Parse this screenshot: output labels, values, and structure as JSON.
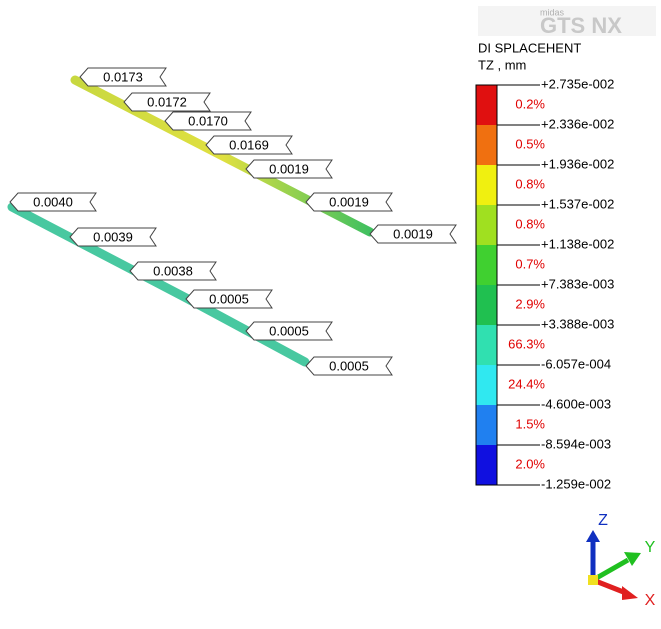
{
  "logo": {
    "brand": "midas",
    "product": "GTS NX"
  },
  "legend": {
    "title": "DI SPLACEHENT",
    "subtitle": "TZ , mm",
    "levels": [
      "+2.735e-002",
      "+2.336e-002",
      "+1.936e-002",
      "+1.537e-002",
      "+1.138e-002",
      "+7.383e-003",
      "+3.388e-003",
      "-6.057e-004",
      "-4.600e-003",
      "-8.594e-003",
      "-1.259e-002"
    ],
    "percentages": [
      "0.2%",
      "0.5%",
      "0.8%",
      "0.8%",
      "0.7%",
      "2.9%",
      "66.3%",
      "24.4%",
      "1.5%",
      "2.0%"
    ]
  },
  "callouts": [
    "0.0173",
    "0.0172",
    "0.0170",
    "0.0169",
    "0.0019",
    "0.0019",
    "0.0019",
    "0.0040",
    "0.0039",
    "0.0038",
    "0.0005",
    "0.0005",
    "0.0005"
  ],
  "axes": {
    "z": "Z",
    "y": "Y",
    "x": "X"
  }
}
